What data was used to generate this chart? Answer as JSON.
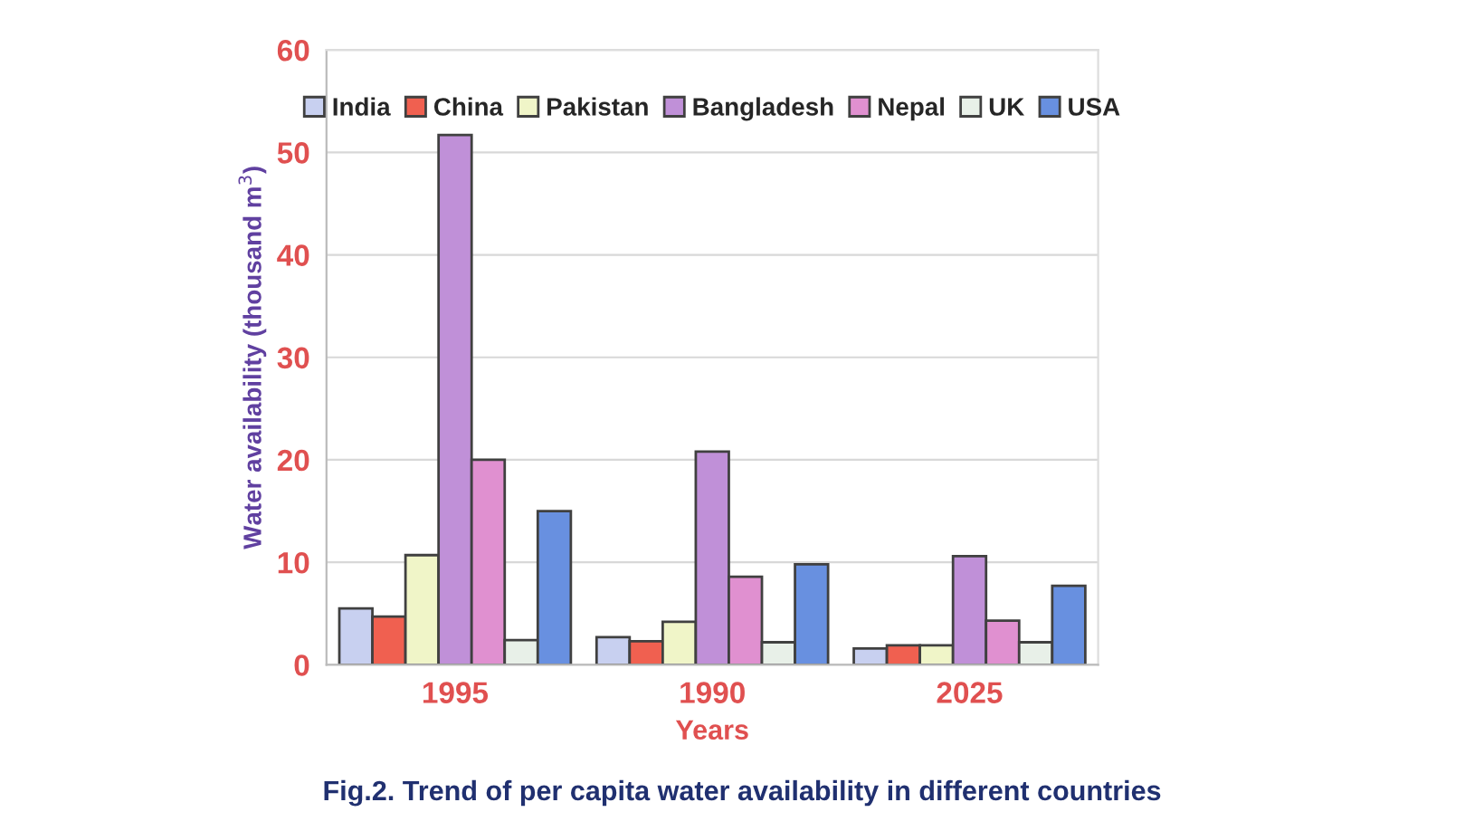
{
  "chart_data": {
    "type": "bar",
    "title": "Fig.2. Trend of per capita water availability in different countries",
    "xlabel": "Years",
    "ylabel": "Water availability (thousand m$^{3}$)",
    "categories": [
      "1995",
      "1990",
      "2025"
    ],
    "series": [
      {
        "name": "India",
        "color": "#c8d0f0",
        "values": [
          5.5,
          2.7,
          1.6
        ]
      },
      {
        "name": "China",
        "color": "#f06050",
        "values": [
          4.7,
          2.3,
          1.9
        ]
      },
      {
        "name": "Pakistan",
        "color": "#f0f5c8",
        "values": [
          10.7,
          4.2,
          1.9
        ]
      },
      {
        "name": "Bangladesh",
        "color": "#c090d8",
        "values": [
          51.7,
          20.8,
          10.6
        ]
      },
      {
        "name": "Nepal",
        "color": "#e090d0",
        "values": [
          20,
          8.6,
          4.3
        ]
      },
      {
        "name": "UK",
        "color": "#e8f0e8",
        "values": [
          2.4,
          2.2,
          2.2
        ]
      },
      {
        "name": "USA",
        "color": "#6890e0",
        "values": [
          15,
          9.8,
          7.7
        ]
      }
    ],
    "ylim": [
      0,
      60
    ],
    "yticks": [
      0,
      10,
      20,
      30,
      40,
      50,
      60
    ],
    "grid": "y",
    "legend": "top"
  }
}
